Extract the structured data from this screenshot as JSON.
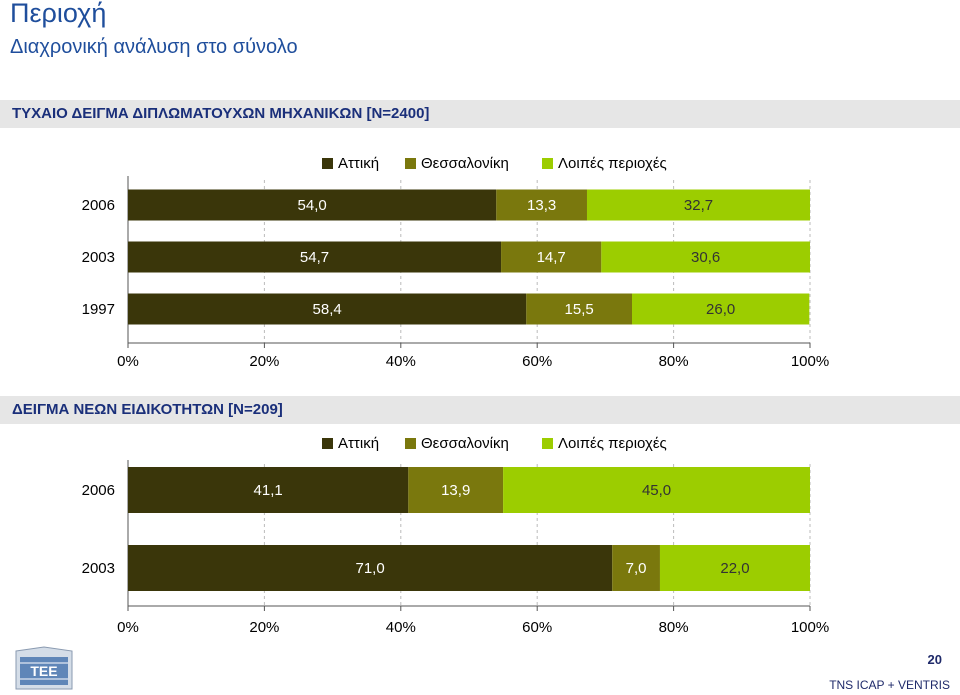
{
  "page": {
    "title": "Περιοχή",
    "subtitle": "Διαχρονική ανάλυση στο σύνολο",
    "page_number": "20",
    "footer": "TNS ICAP + VENTRIS",
    "logo_text": "ΤΕΕ"
  },
  "colors": {
    "attiki": "#3a360a",
    "thessaloniki": "#7a780d",
    "loipes": "#9ccd00"
  },
  "chart_data": [
    {
      "type": "bar",
      "orientation": "horizontal-stacked-100",
      "title": "ΤΥΧΑΙΟ ΔΕΙΓΜΑ ΔΙΠΛΩΜΑΤΟΥΧΩΝ ΜΗΧΑΝΙΚΩΝ [N=2400]",
      "categories": [
        "2006",
        "2003",
        "1997"
      ],
      "series": [
        {
          "name": "Αττική",
          "values": [
            54.0,
            54.7,
            58.4
          ],
          "labels": [
            "54,0",
            "54,7",
            "58,4"
          ]
        },
        {
          "name": "Θεσσαλονίκη",
          "values": [
            13.3,
            14.7,
            15.5
          ],
          "labels": [
            "13,3",
            "14,7",
            "15,5"
          ]
        },
        {
          "name": "Λοιπές περιοχές",
          "values": [
            32.7,
            30.6,
            26.0
          ],
          "labels": [
            "32,7",
            "30,6",
            "26,0"
          ]
        }
      ],
      "xticks": [
        "0%",
        "20%",
        "40%",
        "60%",
        "80%",
        "100%"
      ],
      "xlim": [
        0,
        100
      ],
      "legend": "top"
    },
    {
      "type": "bar",
      "orientation": "horizontal-stacked-100",
      "title": "ΔΕΙΓΜΑ ΝΕΩΝ ΕΙΔΙΚΟΤΗΤΩΝ [N=209]",
      "categories": [
        "2006",
        "2003"
      ],
      "series": [
        {
          "name": "Αττική",
          "values": [
            41.1,
            71.0
          ],
          "labels": [
            "41,1",
            "71,0"
          ]
        },
        {
          "name": "Θεσσαλονίκη",
          "values": [
            13.9,
            7.0
          ],
          "labels": [
            "13,9",
            "7,0"
          ]
        },
        {
          "name": "Λοιπές περιοχές",
          "values": [
            45.0,
            22.0
          ],
          "labels": [
            "45,0",
            "22,0"
          ]
        }
      ],
      "xticks": [
        "0%",
        "20%",
        "40%",
        "60%",
        "80%",
        "100%"
      ],
      "xlim": [
        0,
        100
      ],
      "legend": "top"
    }
  ]
}
